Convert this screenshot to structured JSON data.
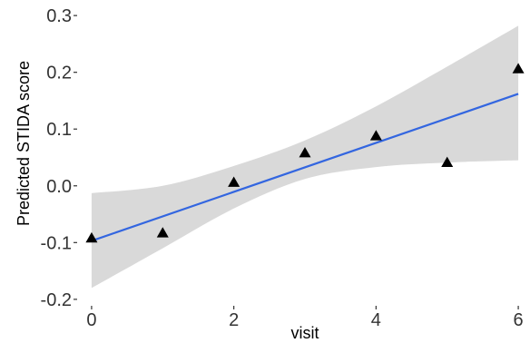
{
  "chart_data": {
    "type": "scatter",
    "title": "",
    "xlabel": "visit",
    "ylabel": "Predicted STIDA score",
    "xlim": [
      -0.05,
      6.05
    ],
    "ylim": [
      -0.205,
      0.305
    ],
    "x_ticks": [
      0,
      2,
      4,
      6
    ],
    "x_tick_labels": [
      "0",
      "2",
      "4",
      "6"
    ],
    "y_ticks": [
      -0.2,
      -0.1,
      0.0,
      0.1,
      0.2,
      0.3
    ],
    "y_tick_labels": [
      "-0.2",
      "-0.1",
      "0.0",
      "0.1",
      "0.2",
      "0.3"
    ],
    "grid": false,
    "points": {
      "marker": "triangle",
      "color": "#000000",
      "x": [
        0,
        1,
        2,
        3,
        4,
        5,
        6
      ],
      "y": [
        -0.092,
        -0.083,
        0.006,
        0.058,
        0.088,
        0.041,
        0.206
      ]
    },
    "fit_line": {
      "color": "#3366e0",
      "x": [
        0,
        6
      ],
      "y": [
        -0.097,
        0.162
      ]
    },
    "confidence_band": {
      "color": "#d9d9d9",
      "x": [
        0,
        1,
        2,
        3,
        4,
        5,
        6
      ],
      "lower": [
        -0.18,
        -0.11,
        -0.04,
        0.012,
        0.033,
        0.041,
        0.045
      ],
      "upper": [
        -0.013,
        0.0,
        0.035,
        0.08,
        0.14,
        0.21,
        0.282
      ]
    }
  }
}
